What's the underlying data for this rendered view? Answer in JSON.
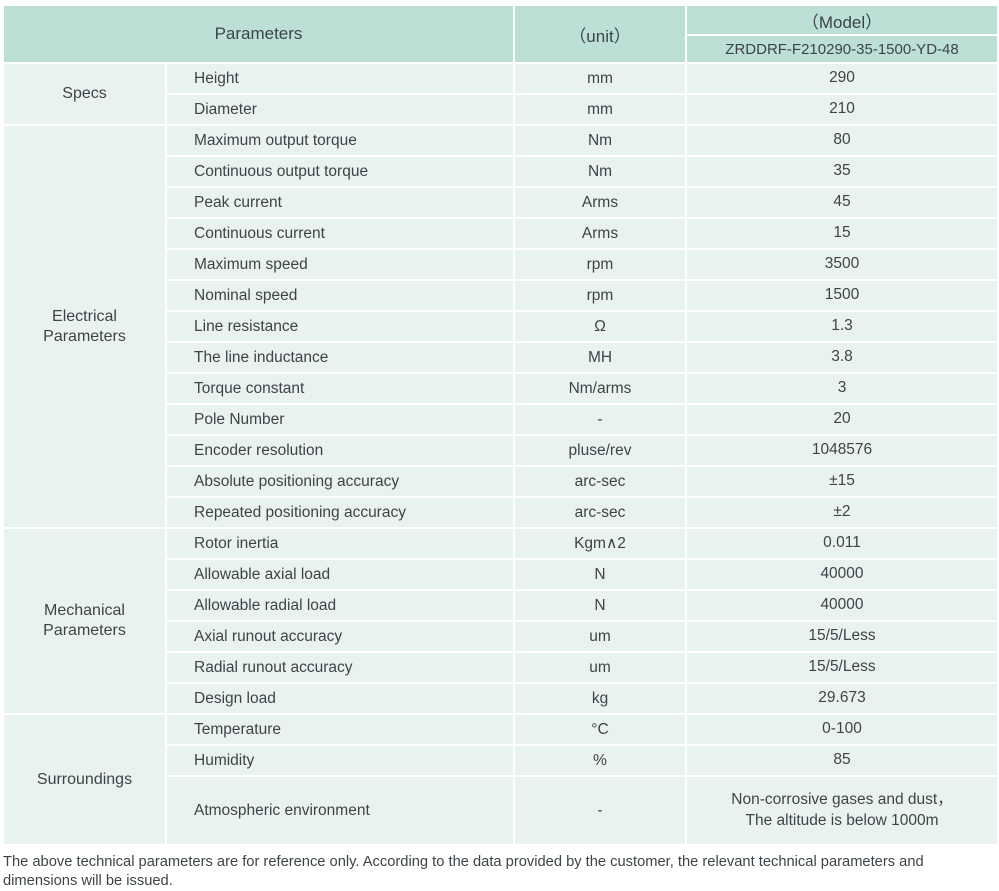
{
  "colors": {
    "header_bg": "#bcdfd6",
    "row_bg": "#e8f3f0",
    "text": "#3d4447"
  },
  "header": {
    "parameters_label": "Parameters",
    "unit_label": "（unit）",
    "model_label": "（Model）",
    "model_number": "ZRDDRF-F210290-35-1500-YD-48"
  },
  "groups": [
    {
      "name": "Specs",
      "rows": [
        {
          "parameter": "Height",
          "unit": "mm",
          "value": "290"
        },
        {
          "parameter": "Diameter",
          "unit": "mm",
          "value": "210"
        }
      ]
    },
    {
      "name": "Electrical Parameters",
      "rows": [
        {
          "parameter": "Maximum output torque",
          "unit": "Nm",
          "value": "80"
        },
        {
          "parameter": "Continuous output torque",
          "unit": "Nm",
          "value": "35"
        },
        {
          "parameter": "Peak current",
          "unit": "Arms",
          "value": "45"
        },
        {
          "parameter": "Continuous current",
          "unit": "Arms",
          "value": "15"
        },
        {
          "parameter": "Maximum speed",
          "unit": "rpm",
          "value": "3500"
        },
        {
          "parameter": "Nominal speed",
          "unit": "rpm",
          "value": "1500"
        },
        {
          "parameter": "Line resistance",
          "unit": "Ω",
          "value": "1.3"
        },
        {
          "parameter": "The line inductance",
          "unit": "MH",
          "value": "3.8"
        },
        {
          "parameter": "Torque constant",
          "unit": "Nm/arms",
          "value": "3"
        },
        {
          "parameter": "Pole Number",
          "unit": "-",
          "value": "20"
        },
        {
          "parameter": "Encoder resolution",
          "unit": "pluse/rev",
          "value": "1048576"
        },
        {
          "parameter": "Absolute positioning accuracy",
          "unit": "arc-sec",
          "value": "±15"
        },
        {
          "parameter": "Repeated positioning accuracy",
          "unit": "arc-sec",
          "value": "±2"
        }
      ]
    },
    {
      "name": "Mechanical Parameters",
      "rows": [
        {
          "parameter": "Rotor inertia",
          "unit": "Kgm∧2",
          "value": "0.011"
        },
        {
          "parameter": "Allowable axial load",
          "unit": "N",
          "value": "40000"
        },
        {
          "parameter": "Allowable radial load",
          "unit": "N",
          "value": "40000"
        },
        {
          "parameter": "Axial runout accuracy",
          "unit": "um",
          "value": "15/5/Less"
        },
        {
          "parameter": "Radial runout accuracy",
          "unit": "um",
          "value": "15/5/Less"
        },
        {
          "parameter": "Design load",
          "unit": "kg",
          "value": "29.673"
        }
      ]
    },
    {
      "name": "Surroundings",
      "rows": [
        {
          "parameter": "Temperature",
          "unit": "°C",
          "value": "0-100"
        },
        {
          "parameter": "Humidity",
          "unit": "%",
          "value": "85"
        },
        {
          "parameter": "Atmospheric environment",
          "unit": "-",
          "value_lines": [
            "Non-corrosive gases and dust，",
            "The altitude is below 1000m"
          ]
        }
      ]
    }
  ],
  "footer": {
    "note": "The above technical parameters are for reference only. According to the data provided by the customer, the relevant technical parameters and dimensions will be issued."
  }
}
